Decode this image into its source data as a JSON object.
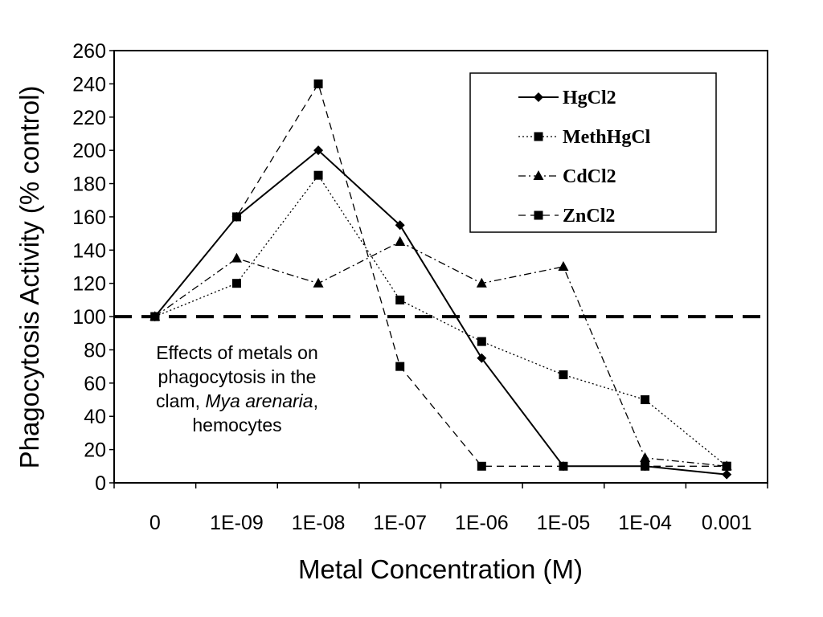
{
  "chart_data": {
    "type": "line",
    "title": "",
    "xlabel": "Metal Concentration (M)",
    "ylabel": "Phagocytosis Activity (% control)",
    "categories": [
      "0",
      "1E-09",
      "1E-08",
      "1E-07",
      "1E-06",
      "1E-05",
      "1E-04",
      "0.001"
    ],
    "ylim": [
      0,
      260
    ],
    "yticks": [
      0,
      20,
      40,
      60,
      80,
      100,
      120,
      140,
      160,
      180,
      200,
      220,
      240,
      260
    ],
    "grid": false,
    "legend_position": "top-right",
    "reference_line": {
      "y": 100,
      "style": "dashed"
    },
    "series": [
      {
        "name": "HgCl2",
        "marker": "diamond",
        "line": "solid",
        "color": "#000000",
        "values": [
          100,
          160,
          200,
          155,
          75,
          10,
          10,
          5
        ]
      },
      {
        "name": "MethHgCl",
        "marker": "square",
        "line": "dotted",
        "color": "#000000",
        "values": [
          100,
          120,
          185,
          110,
          85,
          65,
          50,
          10
        ]
      },
      {
        "name": "CdCl2",
        "marker": "triangle",
        "line": "dashdot",
        "color": "#000000",
        "values": [
          100,
          135,
          120,
          145,
          120,
          130,
          15,
          10
        ]
      },
      {
        "name": "ZnCl2",
        "marker": "square",
        "line": "dashed",
        "color": "#000000",
        "values": [
          100,
          160,
          240,
          70,
          10,
          10,
          10,
          10
        ]
      }
    ],
    "annotation": {
      "lines": [
        "Effects of metals on",
        "phagocytosis in the"
      ],
      "line3_prefix": "clam, ",
      "line3_italic": "Mya arenaria",
      "line3_suffix": ",",
      "line4": "hemocytes"
    }
  }
}
